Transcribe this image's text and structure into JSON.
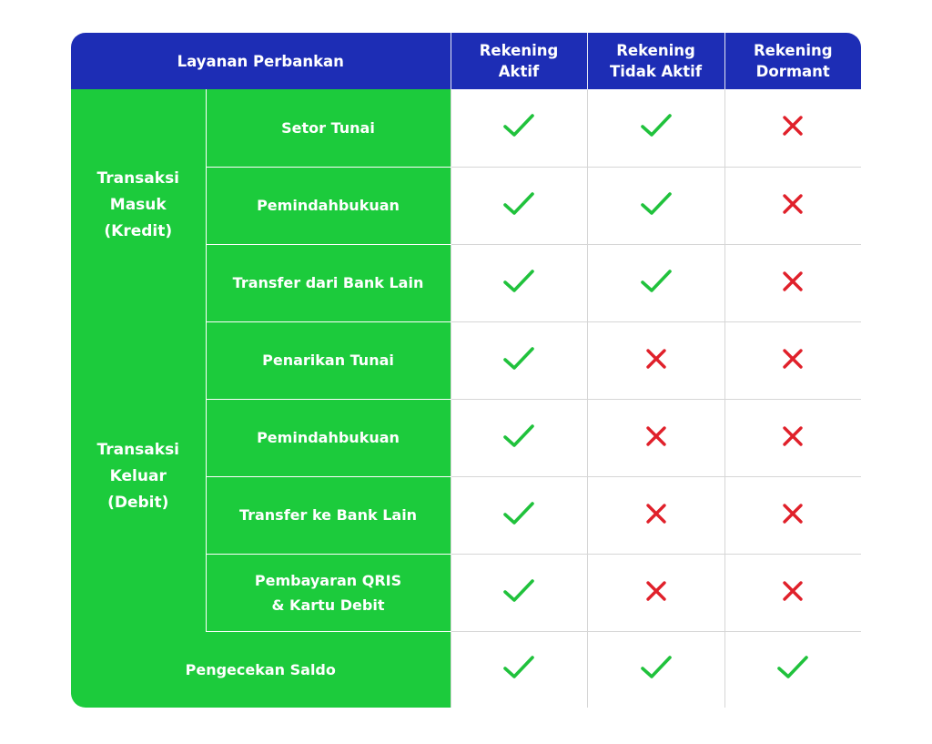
{
  "header": {
    "service": "Layanan Perbankan",
    "columns": [
      "Rekening\nAktif",
      "Rekening\nTidak Aktif",
      "Rekening\nDormant"
    ]
  },
  "groups": [
    {
      "label": "Transaksi\nMasuk\n(Kredit)",
      "rows": [
        {
          "service": "Setor Tunai",
          "marks": [
            "check",
            "check",
            "cross"
          ]
        },
        {
          "service": "Pemindahbukuan",
          "marks": [
            "check",
            "check",
            "cross"
          ]
        },
        {
          "service": "Transfer dari Bank Lain",
          "marks": [
            "check",
            "check",
            "cross"
          ]
        }
      ]
    },
    {
      "label": "Transaksi\nKeluar\n(Debit)",
      "rows": [
        {
          "service": "Penarikan Tunai",
          "marks": [
            "check",
            "cross",
            "cross"
          ]
        },
        {
          "service": "Pemindahbukuan",
          "marks": [
            "check",
            "cross",
            "cross"
          ]
        },
        {
          "service": "Transfer ke Bank Lain",
          "marks": [
            "check",
            "cross",
            "cross"
          ]
        },
        {
          "service": "Pembayaran QRIS\n& Kartu Debit",
          "marks": [
            "check",
            "cross",
            "cross"
          ]
        }
      ]
    }
  ],
  "single_rows": [
    {
      "service": "Pengecekan Saldo",
      "marks": [
        "check",
        "check",
        "check"
      ]
    }
  ],
  "icons": {
    "check": "check-icon",
    "cross": "cross-icon"
  },
  "colors": {
    "header_bg": "#1d2db5",
    "green_bg": "#1ccb3c",
    "check": "#20c23c",
    "cross": "#e0202a"
  }
}
